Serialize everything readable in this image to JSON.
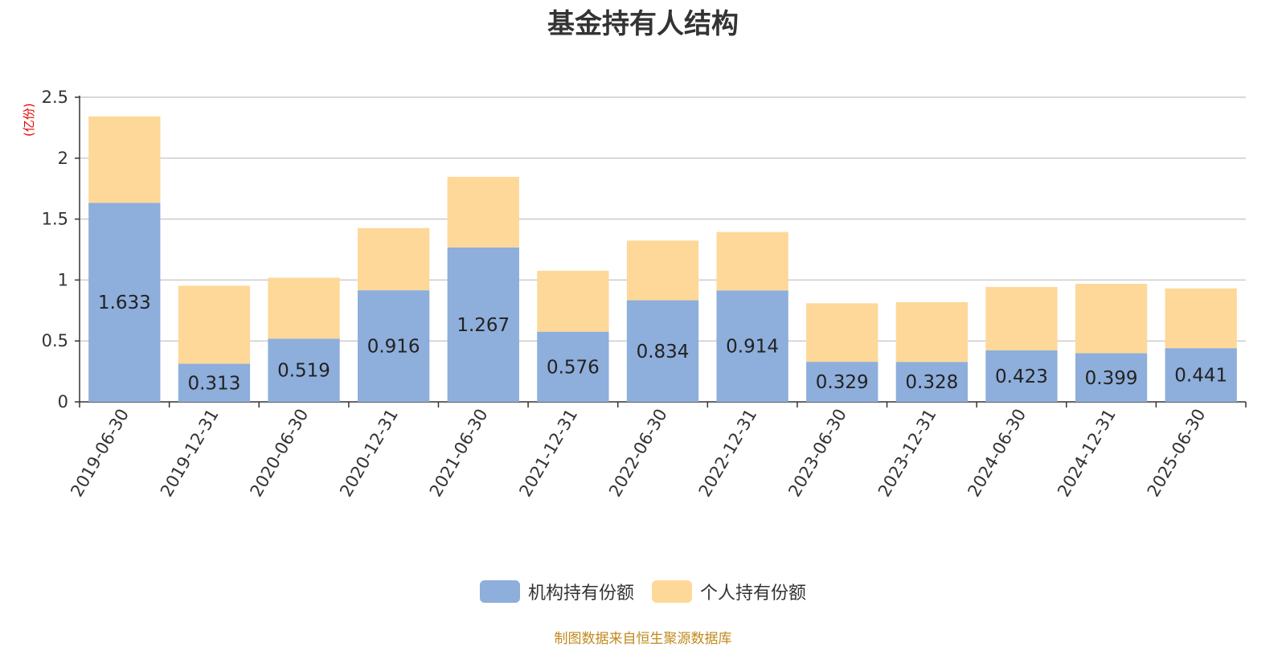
{
  "chart_data": {
    "type": "bar",
    "stacked": true,
    "title": "基金持有人结构",
    "unit_label": "(亿份)",
    "categories": [
      "2019-06-30",
      "2019-12-31",
      "2020-06-30",
      "2020-12-31",
      "2021-06-30",
      "2021-12-31",
      "2022-06-30",
      "2022-12-31",
      "2023-06-30",
      "2023-12-31",
      "2024-06-30",
      "2024-12-31",
      "2025-06-30"
    ],
    "series": [
      {
        "name": "机构持有份额",
        "color": "#8eaedb",
        "values": [
          1.633,
          0.313,
          0.519,
          0.916,
          1.267,
          0.576,
          0.834,
          0.914,
          0.329,
          0.328,
          0.423,
          0.399,
          0.441
        ]
      },
      {
        "name": "个人持有份额",
        "color": "#fed899",
        "values": [
          0.71,
          0.64,
          0.5,
          0.51,
          0.58,
          0.5,
          0.49,
          0.48,
          0.48,
          0.49,
          0.52,
          0.57,
          0.49
        ]
      }
    ],
    "ylim": [
      0,
      2.5
    ],
    "yticks": [
      "0",
      "0.5",
      "1",
      "1.5",
      "2",
      "2.5"
    ],
    "grid": true,
    "legend_position": "bottom-center",
    "data_labels_series": "机构持有份额"
  },
  "source_text": "制图数据来自恒生聚源数据库"
}
